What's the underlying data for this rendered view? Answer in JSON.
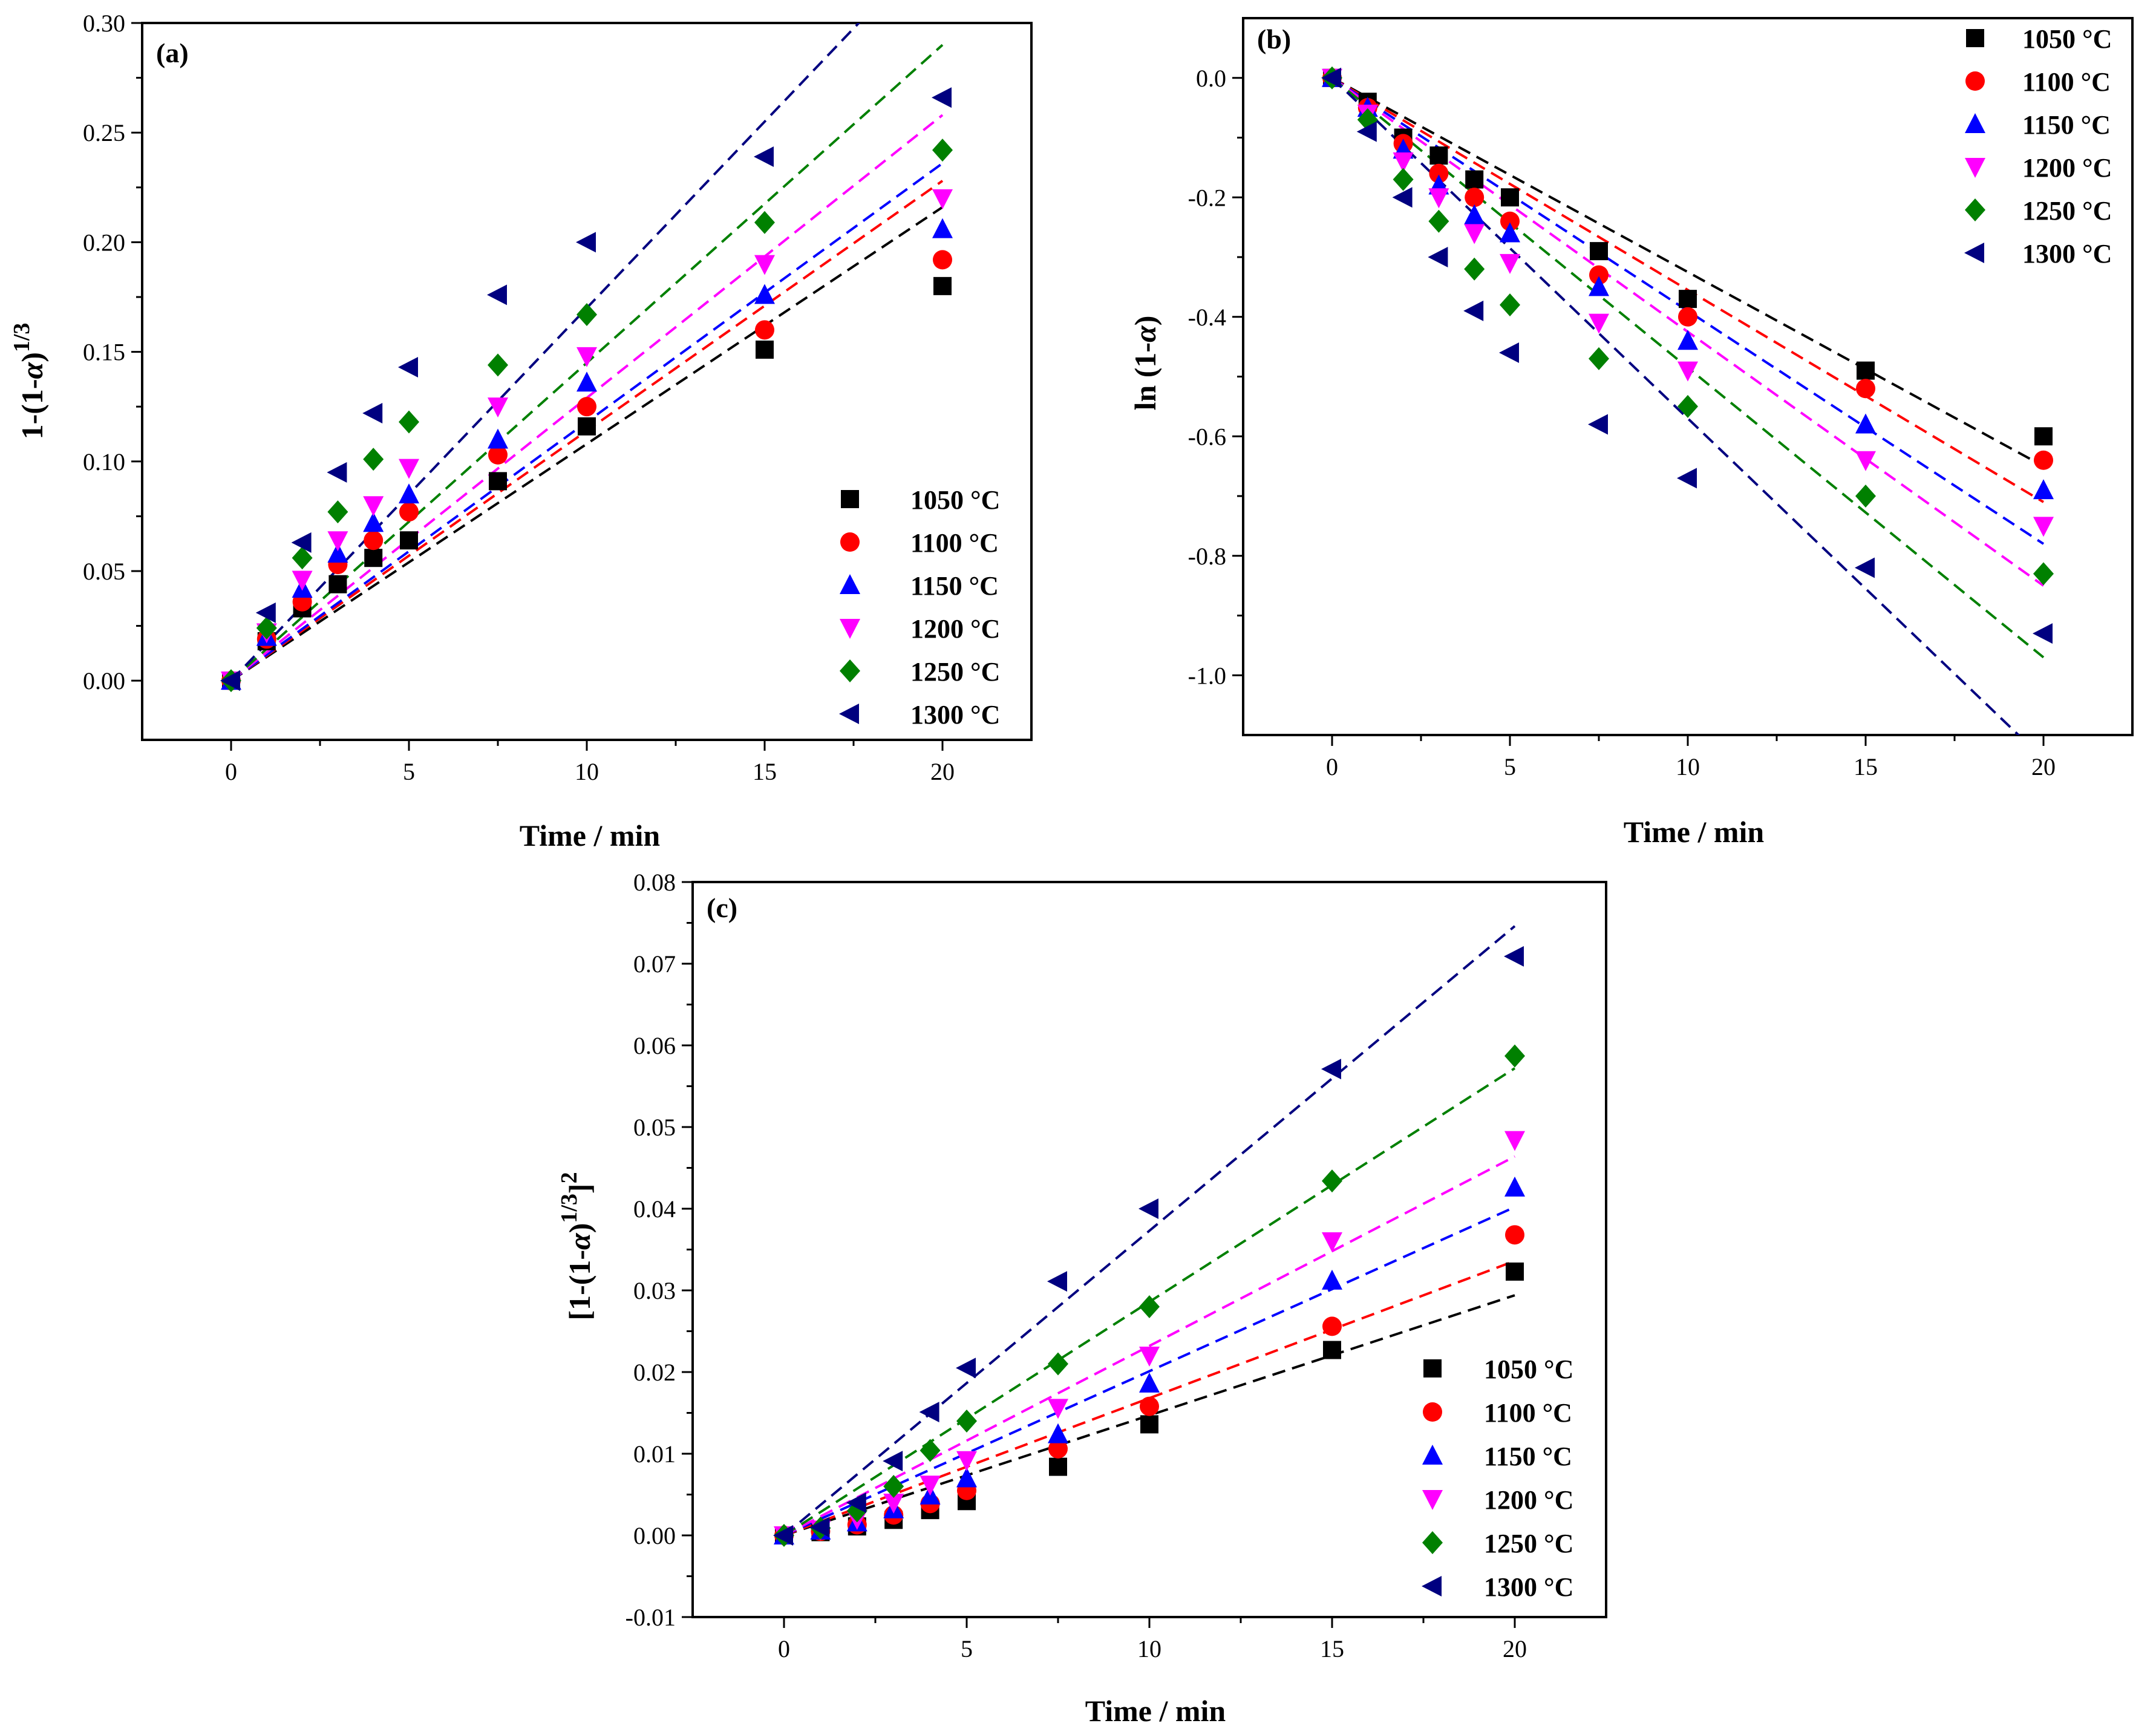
{
  "figure": {
    "temps": [
      "1050 °C",
      "1100 °C",
      "1150 °C",
      "1200 °C",
      "1250 °C",
      "1300 °C"
    ],
    "series_colors": [
      "#000000",
      "#ff0000",
      "#0000ff",
      "#ff00ff",
      "#008000",
      "#000080"
    ],
    "marker_shapes": [
      "square",
      "circle",
      "triangle-up",
      "triangle-down",
      "diamond",
      "triangle-left"
    ]
  },
  "chart_data": [
    {
      "panel": "(a)",
      "type": "scatter",
      "xlabel": "Time / min",
      "ylabel_main": "1-(1-",
      "ylabel_alpha": "α",
      "ylabel_close": ")",
      "ylabel_sup": "1/3",
      "xlim": [
        -2.5,
        22.5
      ],
      "ylim": [
        -0.027,
        0.3
      ],
      "xticks": [
        0,
        5,
        10,
        15,
        20
      ],
      "yticks": [
        0.0,
        0.05,
        0.1,
        0.15,
        0.2,
        0.25,
        0.3
      ],
      "ytick_labels": [
        "0.00",
        "0.05",
        "0.10",
        "0.15",
        "0.20",
        "0.25",
        "0.30"
      ],
      "legend_position": "bottom-right",
      "x": [
        0,
        1,
        2,
        3,
        4,
        5,
        7.5,
        10,
        15,
        20
      ],
      "series": [
        {
          "name": "1050 °C",
          "values": [
            0,
            0.018,
            0.033,
            0.044,
            0.056,
            0.064,
            0.091,
            0.116,
            0.151,
            0.18
          ],
          "fit_slope": 0.0108
        },
        {
          "name": "1100 °C",
          "values": [
            0,
            0.019,
            0.036,
            0.053,
            0.064,
            0.077,
            0.103,
            0.125,
            0.16,
            0.192
          ],
          "fit_slope": 0.0114
        },
        {
          "name": "1150 °C",
          "values": [
            0,
            0.02,
            0.042,
            0.058,
            0.072,
            0.085,
            0.11,
            0.136,
            0.176,
            0.206
          ],
          "fit_slope": 0.0118
        },
        {
          "name": "1200 °C",
          "values": [
            0,
            0.022,
            0.046,
            0.064,
            0.08,
            0.097,
            0.125,
            0.148,
            0.19,
            0.22
          ],
          "fit_slope": 0.0129
        },
        {
          "name": "1250 °C",
          "values": [
            0,
            0.024,
            0.056,
            0.077,
            0.101,
            0.118,
            0.144,
            0.167,
            0.209,
            0.242
          ],
          "fit_slope": 0.0145
        },
        {
          "name": "1300 °C",
          "values": [
            0,
            0.031,
            0.063,
            0.095,
            0.122,
            0.143,
            0.176,
            0.2,
            0.239,
            0.266
          ],
          "fit_slope": 0.017
        }
      ]
    },
    {
      "panel": "(b)",
      "type": "scatter",
      "xlabel": "Time / min",
      "ylabel_main": "ln (1-",
      "ylabel_alpha": "α",
      "ylabel_close": ")",
      "ylabel_sup": "",
      "xlim": [
        -2.5,
        22.5
      ],
      "ylim": [
        -1.1,
        0.1
      ],
      "xticks": [
        0,
        5,
        10,
        15,
        20
      ],
      "yticks": [
        0.0,
        -0.2,
        -0.4,
        -0.6,
        -0.8,
        -1.0
      ],
      "ytick_labels": [
        "0.0",
        "-0.2",
        "-0.4",
        "-0.6",
        "-0.8",
        "-1.0"
      ],
      "legend_position": "top-right",
      "x": [
        0,
        1,
        2,
        3,
        4,
        5,
        7.5,
        10,
        15,
        20
      ],
      "series": [
        {
          "name": "1050 °C",
          "values": [
            0,
            -0.04,
            -0.1,
            -0.13,
            -0.17,
            -0.2,
            -0.29,
            -0.37,
            -0.49,
            -0.6
          ],
          "fit_slope": -0.0325
        },
        {
          "name": "1100 °C",
          "values": [
            0,
            -0.05,
            -0.11,
            -0.16,
            -0.2,
            -0.24,
            -0.33,
            -0.4,
            -0.52,
            -0.64
          ],
          "fit_slope": -0.0355
        },
        {
          "name": "1150 °C",
          "values": [
            0,
            -0.05,
            -0.12,
            -0.18,
            -0.23,
            -0.26,
            -0.35,
            -0.44,
            -0.58,
            -0.69
          ],
          "fit_slope": -0.039
        },
        {
          "name": "1200 °C",
          "values": [
            0,
            -0.06,
            -0.14,
            -0.2,
            -0.26,
            -0.31,
            -0.41,
            -0.49,
            -0.64,
            -0.75
          ],
          "fit_slope": -0.0425
        },
        {
          "name": "1250 °C",
          "values": [
            0,
            -0.07,
            -0.17,
            -0.24,
            -0.32,
            -0.38,
            -0.47,
            -0.55,
            -0.7,
            -0.83
          ],
          "fit_slope": -0.0485
        },
        {
          "name": "1300 °C",
          "values": [
            0,
            -0.09,
            -0.2,
            -0.3,
            -0.39,
            -0.46,
            -0.58,
            -0.67,
            -0.82,
            -0.93
          ],
          "fit_slope": -0.057
        }
      ]
    },
    {
      "panel": "(c)",
      "type": "scatter",
      "xlabel": "Time / min",
      "ylabel_main": "[1-(1-",
      "ylabel_alpha": "α",
      "ylabel_close": ")",
      "ylabel_sup": "1/3",
      "ylabel_tail": "]",
      "ylabel_sup2": "2",
      "xlim": [
        -2.5,
        22.5
      ],
      "ylim": [
        -0.01,
        0.08
      ],
      "xticks": [
        0,
        5,
        10,
        15,
        20
      ],
      "yticks": [
        -0.01,
        0.0,
        0.01,
        0.02,
        0.03,
        0.04,
        0.05,
        0.06,
        0.07,
        0.08
      ],
      "ytick_labels": [
        "-0.01",
        "0.00",
        "0.01",
        "0.02",
        "0.03",
        "0.04",
        "0.05",
        "0.06",
        "0.07",
        "0.08"
      ],
      "legend_position": "bottom-right",
      "x": [
        0,
        1,
        2,
        3,
        4,
        5,
        7.5,
        10,
        15,
        20
      ],
      "series": [
        {
          "name": "1050 °C",
          "values": [
            0,
            0.0004,
            0.0011,
            0.0019,
            0.0031,
            0.0042,
            0.0084,
            0.0136,
            0.0227,
            0.0323
          ],
          "fit_slope": 0.00147
        },
        {
          "name": "1100 °C",
          "values": [
            0,
            0.0005,
            0.0013,
            0.0025,
            0.0039,
            0.0055,
            0.0106,
            0.0158,
            0.0256,
            0.0368
          ],
          "fit_slope": 0.00168
        },
        {
          "name": "1150 °C",
          "values": [
            0,
            0.0006,
            0.0016,
            0.0032,
            0.0049,
            0.007,
            0.0124,
            0.0186,
            0.0312,
            0.0426
          ],
          "fit_slope": 0.00201
        },
        {
          "name": "1200 °C",
          "values": [
            0,
            0.0007,
            0.002,
            0.004,
            0.0062,
            0.0092,
            0.0156,
            0.022,
            0.036,
            0.0484
          ],
          "fit_slope": 0.00232
        },
        {
          "name": "1250 °C",
          "values": [
            0,
            0.0009,
            0.003,
            0.006,
            0.0104,
            0.014,
            0.021,
            0.028,
            0.0434,
            0.0587
          ],
          "fit_slope": 0.00286
        },
        {
          "name": "1300 °C",
          "values": [
            0,
            0.001,
            0.004,
            0.0091,
            0.0151,
            0.0205,
            0.0311,
            0.04,
            0.0571,
            0.0709
          ],
          "fit_slope": 0.00373
        }
      ]
    }
  ]
}
